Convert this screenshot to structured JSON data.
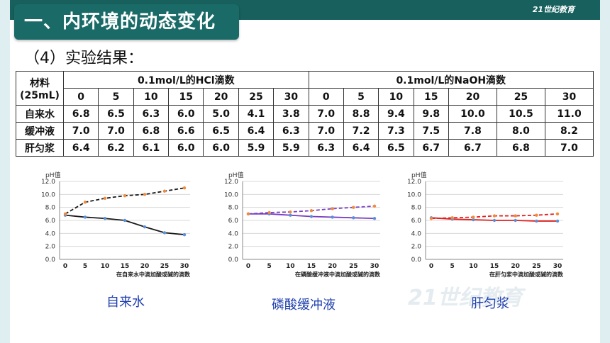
{
  "header": {
    "title": "一、内环境的动态变化",
    "logo_text": "21世纪教育"
  },
  "subtitle": "（4）实验结果：",
  "table": {
    "material_label": "材料",
    "material_unit": "(25mL)",
    "hcl_header": "0.1mol/L的HCl滴数",
    "naoh_header": "0.1mol/L的NaOH滴数",
    "drops": [
      "0",
      "5",
      "10",
      "15",
      "20",
      "25",
      "30"
    ],
    "rows": [
      {
        "name": "自来水",
        "hcl": [
          "6.8",
          "6.5",
          "6.3",
          "6.0",
          "5.0",
          "4.1",
          "3.8"
        ],
        "naoh": [
          "7.0",
          "8.8",
          "9.4",
          "9.8",
          "10.0",
          "10.5",
          "11.0"
        ]
      },
      {
        "name": "缓冲液",
        "hcl": [
          "7.0",
          "7.0",
          "6.8",
          "6.6",
          "6.5",
          "6.4",
          "6.3"
        ],
        "naoh": [
          "7.0",
          "7.2",
          "7.3",
          "7.5",
          "7.8",
          "8.0",
          "8.2"
        ]
      },
      {
        "name": "肝匀浆",
        "hcl": [
          "6.4",
          "6.2",
          "6.1",
          "6.0",
          "6.0",
          "5.9",
          "5.9"
        ],
        "naoh": [
          "6.3",
          "6.4",
          "6.5",
          "6.7",
          "6.7",
          "6.8",
          "7.0"
        ]
      }
    ]
  },
  "colors": {
    "acid_water": "#1a1a1a",
    "base_water": "#1a1a1a",
    "acid_buffer": "#7a3fc2",
    "base_buffer": "#7a3fc2",
    "acid_liver": "#e02020",
    "base_liver": "#e02020",
    "marker": "#5b8fd6",
    "marker_base": "#f08a3c"
  },
  "captions": [
    "自来水",
    "磷酸缓冲液",
    "肝匀浆"
  ],
  "chart_data": [
    {
      "type": "line",
      "ylabel": "pH值",
      "xlabel": "在自来水中滴加酸或碱的滴数",
      "x": [
        0,
        5,
        10,
        15,
        20,
        25,
        30
      ],
      "yticks": [
        "0.0",
        "2.0",
        "4.0",
        "6.0",
        "8.0",
        "10.0",
        "12.0"
      ],
      "xticks": [
        "0",
        "5",
        "10",
        "15",
        "20",
        "25",
        "30"
      ],
      "ylim": [
        0,
        12
      ],
      "series": [
        {
          "values": [
            6.8,
            6.5,
            6.3,
            6.0,
            5.0,
            4.1,
            3.8
          ],
          "style": "solid"
        },
        {
          "values": [
            7.0,
            8.8,
            9.4,
            9.8,
            10.0,
            10.5,
            11.0
          ],
          "style": "dashed"
        }
      ]
    },
    {
      "type": "line",
      "ylabel": "pH值",
      "xlabel": "在磷酸缓冲液中滴加酸或碱的滴数",
      "x": [
        0,
        5,
        10,
        15,
        20,
        25,
        30
      ],
      "yticks": [
        "0.0",
        "2.0",
        "4.0",
        "6.0",
        "8.0",
        "10.0",
        "12.0"
      ],
      "xticks": [
        "0",
        "5",
        "10",
        "15",
        "20",
        "25",
        "30"
      ],
      "ylim": [
        0,
        12
      ],
      "series": [
        {
          "values": [
            7.0,
            7.0,
            6.8,
            6.6,
            6.5,
            6.4,
            6.3
          ],
          "style": "solid"
        },
        {
          "values": [
            7.0,
            7.2,
            7.3,
            7.5,
            7.8,
            8.0,
            8.2
          ],
          "style": "dashed"
        }
      ]
    },
    {
      "type": "line",
      "ylabel": "pH值",
      "xlabel": "在肝匀浆中滴加酸或碱的滴数",
      "x": [
        0,
        5,
        10,
        15,
        20,
        25,
        30
      ],
      "yticks": [
        "0.0",
        "2.0",
        "4.0",
        "6.0",
        "8.0",
        "10.0",
        "12.0"
      ],
      "xticks": [
        "0",
        "5",
        "10",
        "15",
        "20",
        "25",
        "30"
      ],
      "ylim": [
        0,
        12
      ],
      "series": [
        {
          "values": [
            6.4,
            6.2,
            6.1,
            6.0,
            6.0,
            5.9,
            5.9
          ],
          "style": "solid"
        },
        {
          "values": [
            6.3,
            6.4,
            6.5,
            6.7,
            6.7,
            6.8,
            7.0
          ],
          "style": "dashed"
        }
      ]
    }
  ]
}
